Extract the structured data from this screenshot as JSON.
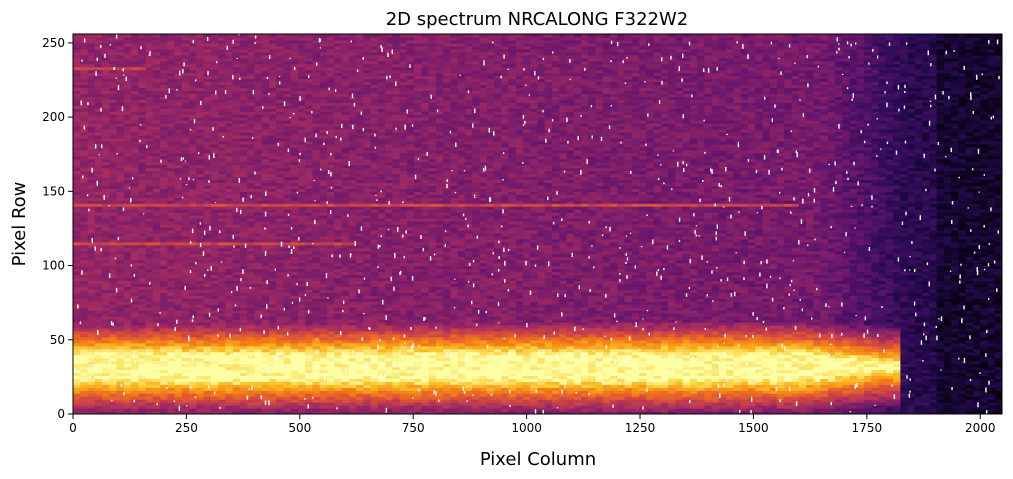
{
  "chart_data": {
    "type": "heatmap",
    "title": "2D spectrum NRCALONG F322W2",
    "xlabel": "Pixel Column",
    "ylabel": "Pixel Row",
    "xlim": [
      0,
      2048
    ],
    "ylim": [
      0,
      256
    ],
    "xticks": [
      0,
      250,
      500,
      750,
      1000,
      1250,
      1500,
      1750,
      2000
    ],
    "yticks": [
      0,
      50,
      100,
      150,
      200,
      250
    ],
    "colormap": "inferno",
    "grid": false,
    "trace_center_row": 32,
    "trace_x_start": 0,
    "trace_x_end": 1820,
    "secondary_traces": [
      {
        "row": 141,
        "x_start": 0,
        "x_end": 1600
      },
      {
        "row": 115,
        "x_start": 0,
        "x_end": 620
      },
      {
        "row": 233,
        "x_start": 0,
        "x_end": 160
      }
    ]
  }
}
